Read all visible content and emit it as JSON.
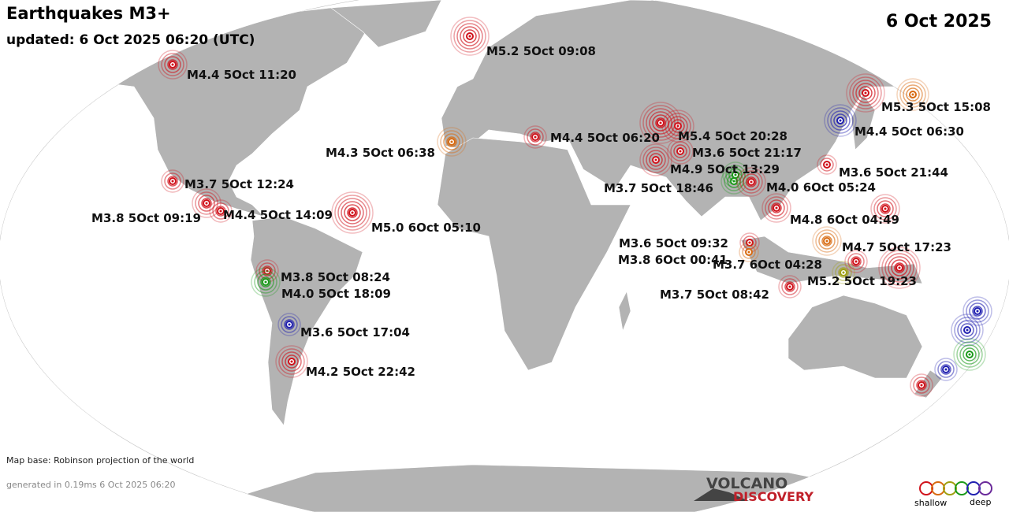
{
  "header": {
    "title": "Earthquakes M3+",
    "updated": "updated:  6 Oct 2025 06:20 (UTC)",
    "date": "6 Oct 2025"
  },
  "quakes": [
    {
      "label": "M5.2  5Oct 09:08",
      "color": "#d0121b"
    },
    {
      "label": "M4.4  5Oct 11:20",
      "color": "#d0121b"
    },
    {
      "label": "M5.3  5Oct 15:08",
      "color": "#d0121b"
    },
    {
      "label": "M4.4  5Oct 06:30",
      "color": "#2020b0"
    },
    {
      "label": "M5.4  5Oct 20:28",
      "color": "#d0121b"
    },
    {
      "label": "M4.4  5Oct 06:20",
      "color": "#d0121b"
    },
    {
      "label": "M4.3  5Oct 06:38",
      "color": "#d86a10"
    },
    {
      "label": "M3.6  5Oct 21:17",
      "color": "#d0121b"
    },
    {
      "label": "M4.9  5Oct 13:29",
      "color": "#d0121b"
    },
    {
      "label": "M3.6  5Oct 21:44",
      "color": "#d0121b"
    },
    {
      "label": "M3.7  5Oct 12:24",
      "color": "#d0121b"
    },
    {
      "label": "M3.7  5Oct 18:46",
      "color": "#1a9a1a"
    },
    {
      "label": "M4.0  6Oct 05:24",
      "color": "#d0121b"
    },
    {
      "label": "M3.8  5Oct 09:19",
      "color": "#d0121b"
    },
    {
      "label": "M4.4  5Oct 14:09",
      "color": "#d0121b"
    },
    {
      "label": "M5.0  6Oct 05:10",
      "color": "#d0121b"
    },
    {
      "label": "M4.8  6Oct 04:49",
      "color": "#d0121b"
    },
    {
      "label": "M3.6  5Oct 09:32",
      "color": "#d0121b"
    },
    {
      "label": "M4.7  5Oct 17:23",
      "color": "#d86a10"
    },
    {
      "label": "M3.8  6Oct 00:41",
      "color": "#d86a10"
    },
    {
      "label": "M3.7  6Oct 04:28",
      "color": "#d0121b"
    },
    {
      "label": "M3.8  5Oct 08:24",
      "color": "#d0121b"
    },
    {
      "label": "M5.2  5Oct 19:23",
      "color": "#a0a010"
    },
    {
      "label": "M4.0  5Oct 18:09",
      "color": "#1a9a1a"
    },
    {
      "label": "M3.7  5Oct 08:42",
      "color": "#d0121b"
    },
    {
      "label": "M3.6  5Oct 17:04",
      "color": "#2020b0"
    },
    {
      "label": "M4.2  5Oct 22:42",
      "color": "#d0121b"
    }
  ],
  "footer": {
    "map_base": "Map base: Robinson projection of the world",
    "generated": "generated in 0.19ms  6 Oct 2025 06:20",
    "logo_top": "VOLCANO",
    "logo_bottom": "DISCOVERY"
  },
  "legend": {
    "shallow": "shallow",
    "deep": "deep"
  }
}
